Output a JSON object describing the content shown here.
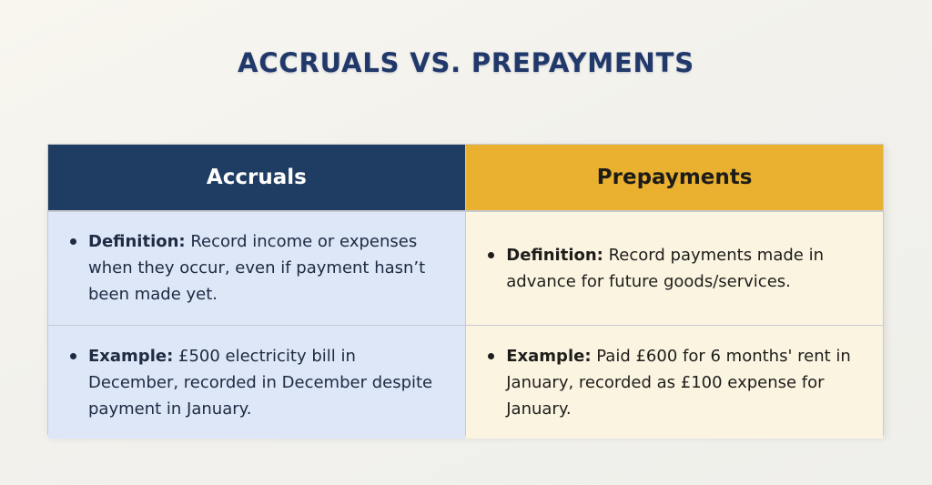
{
  "page": {
    "title": "ACCRUALS VS. PREPAYMENTS"
  },
  "colors": {
    "title_text": "#21386a",
    "accruals_header_bg": "#1f3d62",
    "accruals_header_text": "#ffffff",
    "prepayments_header_bg": "#eab02f",
    "prepayments_header_text": "#1d1c18",
    "accruals_cell_bg": "#dde7f8",
    "prepayments_cell_bg": "#faf4e1",
    "table_border": "#c7cacf",
    "page_bg": "#f2f1ec"
  },
  "comparison_table": {
    "headers": [
      {
        "label": "Accruals"
      },
      {
        "label": "Prepayments"
      }
    ],
    "rows": [
      {
        "cells": [
          {
            "label": "Definition:",
            "text": " Record income or expenses when they occur, even if payment hasn’t been made yet."
          },
          {
            "label": "Definition:",
            "text": " Record payments made in advance for future goods/services."
          }
        ]
      },
      {
        "cells": [
          {
            "label": "Example:",
            "text": " £500 electricity bill in December, recorded in December despite payment in January."
          },
          {
            "label": "Example:",
            "text": " Paid £600 for 6 months' rent in January, recorded as £100 expense for January."
          }
        ]
      }
    ]
  }
}
